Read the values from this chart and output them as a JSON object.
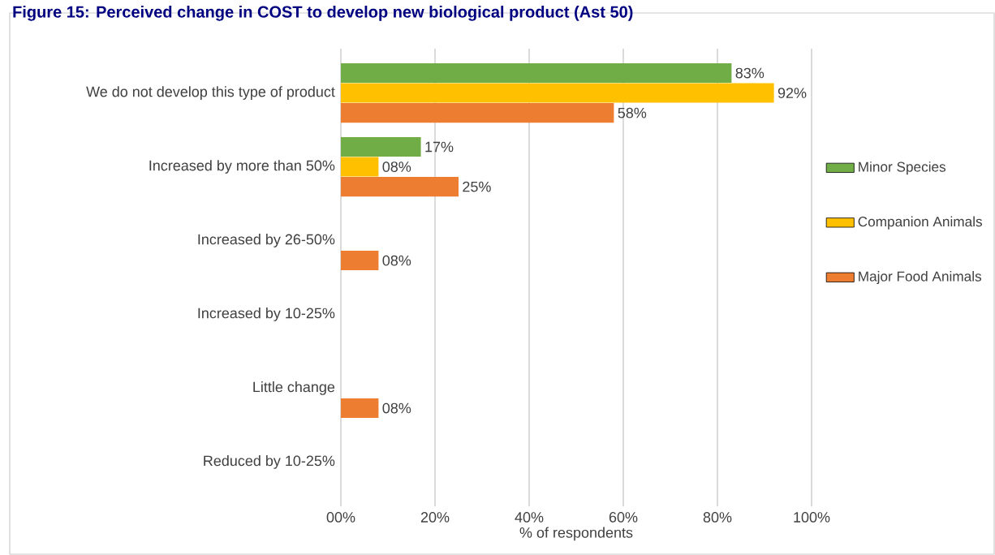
{
  "chart_data": {
    "type": "bar",
    "orientation": "horizontal",
    "title": "Figure 15: Perceived change in COST to develop new biological product (Ast 50)",
    "xlabel": "% of respondents",
    "categories": [
      "We do not develop this type of product",
      "Increased by more than 50%",
      "Increased by 26-50%",
      "Increased by 10-25%",
      "Little change",
      "Reduced by 10-25%"
    ],
    "series": [
      {
        "name": "Minor Species",
        "color": "#70ad47",
        "values": [
          83,
          17,
          null,
          null,
          null,
          null
        ],
        "value_labels": [
          "83%",
          "17%",
          null,
          null,
          null,
          null
        ]
      },
      {
        "name": "Companion Animals",
        "color": "#ffc000",
        "values": [
          92,
          8,
          null,
          null,
          null,
          null
        ],
        "value_labels": [
          "92%",
          "08%",
          null,
          null,
          null,
          null
        ]
      },
      {
        "name": "Major Food Animals",
        "color": "#ed7d31",
        "values": [
          58,
          25,
          8,
          null,
          8,
          null
        ],
        "value_labels": [
          "58%",
          "25%",
          "08%",
          null,
          "08%",
          null
        ]
      }
    ],
    "xlim": [
      0,
      100
    ],
    "xticks": [
      {
        "value": 0,
        "label": "00%"
      },
      {
        "value": 20,
        "label": "20%"
      },
      {
        "value": 40,
        "label": "40%"
      },
      {
        "value": 60,
        "label": "60%"
      },
      {
        "value": 80,
        "label": "80%"
      },
      {
        "value": 100,
        "label": "100%"
      }
    ],
    "grid": "x",
    "legend": "right"
  }
}
